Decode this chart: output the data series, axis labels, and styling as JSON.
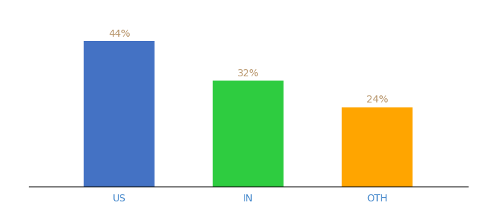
{
  "categories": [
    "US",
    "IN",
    "OTH"
  ],
  "values": [
    44,
    32,
    24
  ],
  "bar_colors": [
    "#4472C4",
    "#2ECC40",
    "#FFA500"
  ],
  "value_labels": [
    "44%",
    "32%",
    "24%"
  ],
  "value_label_color": "#B8956A",
  "ylim": [
    0,
    52
  ],
  "bar_width": 0.55,
  "background_color": "#ffffff",
  "spine_color": "#111111",
  "tick_label_color": "#4488CC",
  "tick_label_fontsize": 10,
  "value_label_fontsize": 10
}
